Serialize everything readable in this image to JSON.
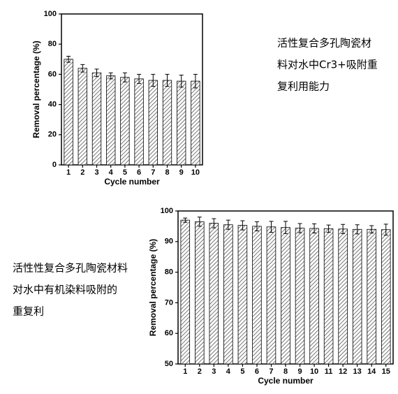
{
  "chart_data": [
    {
      "type": "bar",
      "xlabel": "Cycle number",
      "ylabel": "Removal percentage (%)",
      "categories": [
        "1",
        "2",
        "3",
        "4",
        "5",
        "6",
        "7",
        "8",
        "9",
        "10"
      ],
      "values": [
        70,
        64,
        61,
        59,
        58,
        57,
        56,
        56,
        55.5,
        55.5
      ],
      "errors": [
        2,
        2.5,
        2.5,
        2,
        3,
        3,
        4,
        4,
        4,
        4.5
      ],
      "color": "#555555",
      "ylim": [
        0,
        100
      ],
      "yticks": [
        0,
        20,
        40,
        60,
        80,
        100
      ]
    },
    {
      "type": "bar",
      "xlabel": "Cycle number",
      "ylabel": "Removal percentage (%)",
      "categories": [
        "1",
        "2",
        "3",
        "4",
        "5",
        "6",
        "7",
        "8",
        "9",
        "10",
        "11",
        "12",
        "13",
        "14",
        "15"
      ],
      "values": [
        97,
        96.5,
        96,
        95.5,
        95.3,
        95,
        94.8,
        94.6,
        94.4,
        94.3,
        94.2,
        94.1,
        94,
        94,
        93.9
      ],
      "errors": [
        0.7,
        1.5,
        1.5,
        1.5,
        1.5,
        1.5,
        1.8,
        2,
        1.5,
        1.5,
        1.2,
        1.5,
        1.5,
        1.2,
        1.8
      ],
      "color": "#555555",
      "ylim": [
        50,
        100
      ],
      "yticks": [
        50,
        60,
        70,
        80,
        90,
        100
      ]
    }
  ],
  "captions": [
    [
      "活性复合多孔陶瓷材",
      "料对水中Cr3+吸附重",
      "复利用能力"
    ],
    [
      "活性性复合多孔陶瓷材料",
      "对水中有机染料吸附的",
      "重复利"
    ]
  ]
}
